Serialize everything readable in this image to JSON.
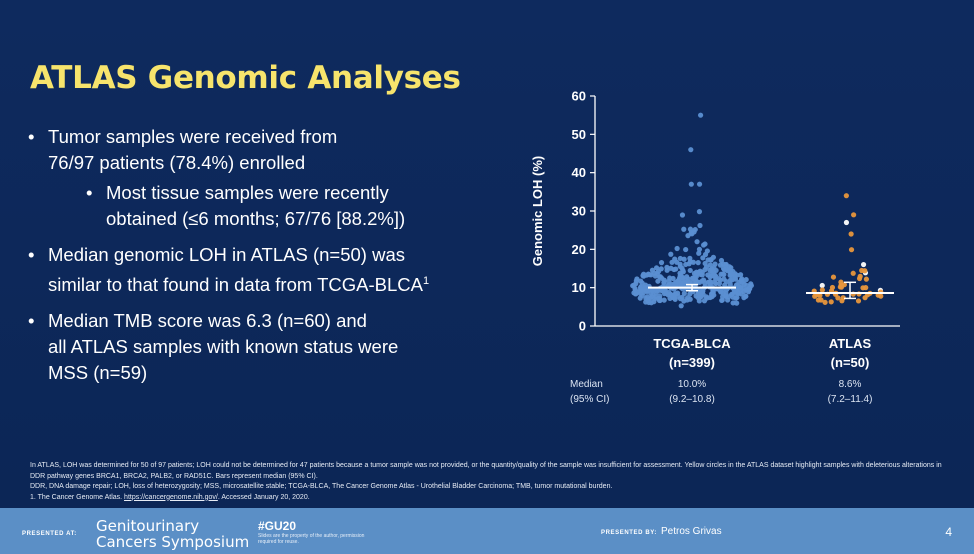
{
  "title": "ATLAS Genomic Analyses",
  "bullets": {
    "b1_line1": "Tumor samples were received from",
    "b1_line2": "76/97 patients (78.4%) enrolled",
    "b1_sub_line1": "Most tissue samples were recently",
    "b1_sub_line2": "obtained (≤6 months; 67/76 [88.2%])",
    "b2_line1": "Median genomic LOH in ATLAS (n=50) was",
    "b2_line2": "similar to that found in data from TCGA-BLCA",
    "b2_sup": "1",
    "b3_line1": "Median TMB score was 6.3 (n=60) and",
    "b3_line2": "all ATLAS samples with known status were",
    "b3_line3": "MSS (n=59)"
  },
  "chart_data": {
    "type": "scatter",
    "ylabel": "Genomic LOH (%)",
    "ylim": [
      0,
      60
    ],
    "yticks": [
      "0",
      "10",
      "20",
      "30",
      "40",
      "50",
      "60"
    ],
    "groups": [
      {
        "label": "TCGA-BLCA",
        "n": "(n=399)",
        "median": 10.0,
        "median_text": "10.0%",
        "ci_text": "(9.2–10.8)",
        "ci": [
          9.2,
          10.8
        ],
        "color": "#5b8fd2",
        "max_points": [
          55,
          46,
          37,
          37
        ]
      },
      {
        "label": "ATLAS",
        "n": "(n=50)",
        "median": 8.6,
        "median_text": "8.6%",
        "ci_text": "(7.2–11.4)",
        "ci": [
          7.2,
          11.4
        ],
        "color": "#e8963c",
        "highlight_color": "#ffffff",
        "max_points": [
          34,
          29,
          27,
          24
        ]
      }
    ],
    "row_labels": {
      "median": "Median",
      "ci": "(95% CI)"
    }
  },
  "footnote": {
    "line1": "In ATLAS, LOH was determined for 50 of 97 patients; LOH could not be determined for 47 patients because a tumor sample was not provided, or the quantity/quality of the sample was insufficient for assessment. Yellow circles in the ATLAS dataset highlight samples with deleterious alterations in DDR pathway genes BRCA1, BRCA2, PALB2, or RAD51C. Bars represent median (95% CI).",
    "line2": "DDR, DNA damage repair; LOH, loss of heterozygosity; MSS, microsatellite stable; TCGA-BLCA, The Cancer Genome Atlas - Urothelial Bladder Carcinoma; TMB, tumor mutational burden.",
    "line3_pre": "1. The Cancer Genome Atlas. ",
    "line3_link": "https://cancergenome.nih.gov/",
    "line3_post": ". Accessed January 20, 2020."
  },
  "footer": {
    "presented_at": "PRESENTED AT:",
    "conf_line1": "Genitourinary",
    "conf_line2": "Cancers Symposium",
    "hashtag": "#GU20",
    "hashtag_note": "Slides are the property of the author, permission required for reuse.",
    "presented_by": "PRESENTED BY:",
    "presenter": "Petros Grivas",
    "page": "4"
  }
}
